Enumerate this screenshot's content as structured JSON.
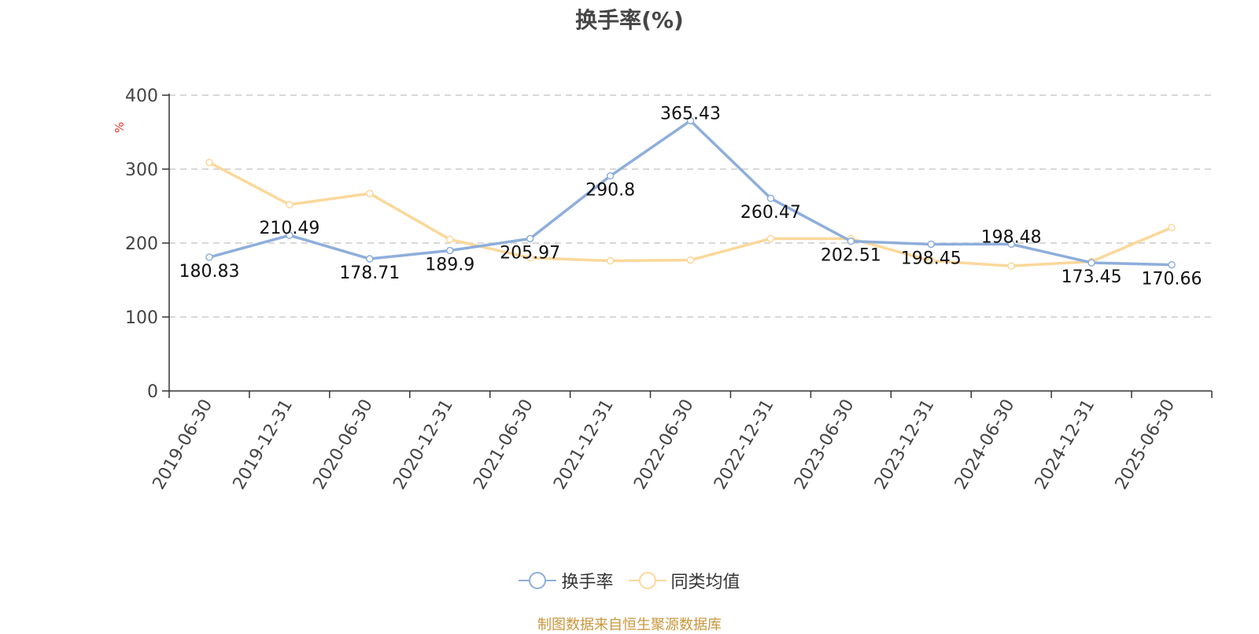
{
  "chart_data": {
    "type": "line",
    "title": "换手率(%)",
    "ylabel": "%",
    "xlabel": "",
    "ylim": [
      0,
      400
    ],
    "yticks": [
      0,
      100,
      200,
      300,
      400
    ],
    "grid": true,
    "legend_position": "bottom",
    "categories": [
      "2019-06-30",
      "2019-12-31",
      "2020-06-30",
      "2020-12-31",
      "2021-06-30",
      "2021-12-31",
      "2022-06-30",
      "2022-12-31",
      "2023-06-30",
      "2023-12-31",
      "2024-06-30",
      "2024-12-31",
      "2025-06-30"
    ],
    "series": [
      {
        "name": "换手率",
        "color": "#8eaedb",
        "values": [
          180.83,
          210.49,
          178.71,
          189.9,
          205.97,
          290.8,
          365.43,
          260.47,
          202.51,
          198.45,
          198.48,
          173.45,
          170.66
        ],
        "labels": [
          "180.83",
          "210.49",
          "178.71",
          "189.9",
          "205.97",
          "290.8",
          "365.43",
          "260.47",
          "202.51",
          "198.45",
          "198.48",
          "173.45",
          "170.66"
        ]
      },
      {
        "name": "同类均值",
        "color": "#fbd89a",
        "values": [
          309,
          252,
          267,
          205,
          180,
          176,
          177,
          206,
          206,
          176,
          169,
          175,
          221
        ]
      }
    ]
  },
  "footer": {
    "source": "制图数据来自恒生聚源数据库",
    "source_color": "#c9963c"
  }
}
